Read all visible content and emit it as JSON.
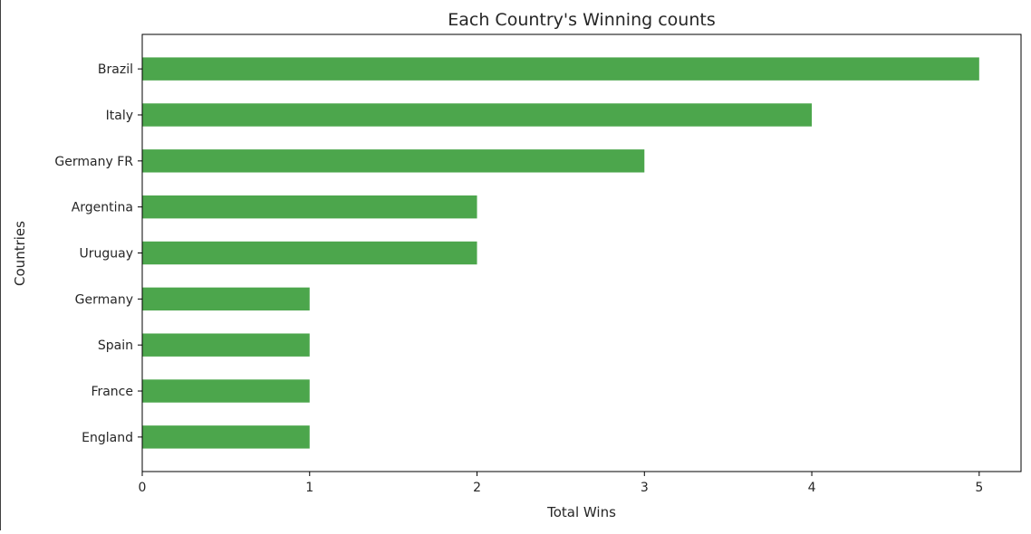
{
  "chart_data": {
    "type": "bar",
    "orientation": "horizontal",
    "title": "Each Country's Winning counts",
    "xlabel": "Total Wins",
    "ylabel": "Countries",
    "categories": [
      "Brazil",
      "Italy",
      "Germany FR",
      "Argentina",
      "Uruguay",
      "Germany",
      "Spain",
      "France",
      "England"
    ],
    "values": [
      5,
      4,
      3,
      2,
      2,
      1,
      1,
      1,
      1
    ],
    "xlim": [
      0,
      5.25
    ],
    "xticks": [
      "0",
      "1",
      "2",
      "3",
      "4",
      "5"
    ],
    "grid": false,
    "legend": false,
    "colors": {
      "bar": "#4ca64c",
      "axis": "#000000",
      "text": "#262626"
    }
  }
}
